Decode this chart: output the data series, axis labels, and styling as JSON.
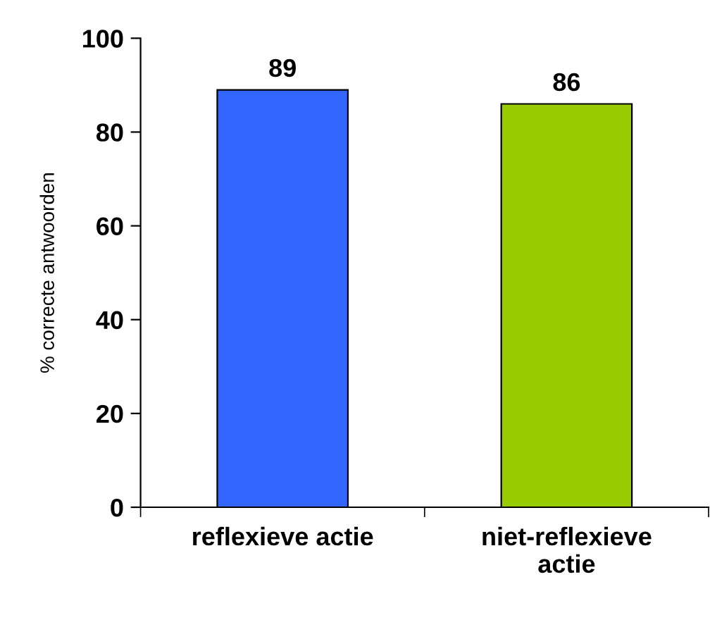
{
  "chart_data": {
    "type": "bar",
    "ylabel": "% correcte antwoorden",
    "categories": [
      "reflexieve actie",
      "niet-reflexieve actie"
    ],
    "values": [
      89,
      86
    ],
    "colors": [
      "#3366ff",
      "#99cc00"
    ],
    "ylim": [
      0,
      100
    ],
    "yticks": [
      0,
      20,
      40,
      60,
      80,
      100
    ],
    "data_labels": true,
    "grid": false,
    "legend": false
  }
}
